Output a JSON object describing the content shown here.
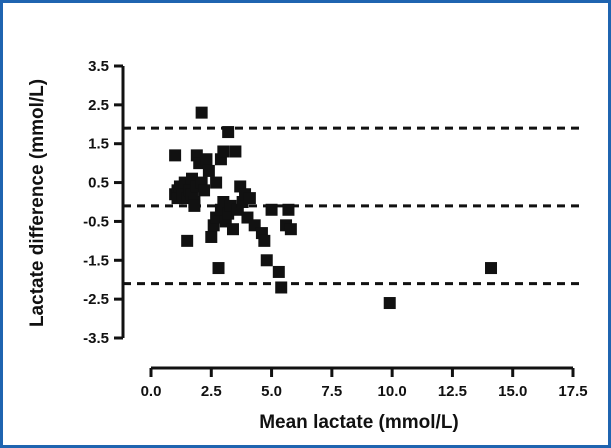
{
  "frame_color": "#1f64b0",
  "chart_data": {
    "type": "scatter",
    "xlabel": "Mean lactate (mmol/L)",
    "ylabel": "Lactate difference (mmol/L)",
    "xlim": [
      0,
      17.5
    ],
    "ylim": [
      -3.5,
      3.5
    ],
    "x_ticks": [
      "0.0",
      "2.5",
      "5.0",
      "7.5",
      "10.0",
      "12.5",
      "15.0",
      "17.5"
    ],
    "y_ticks": [
      "3.5",
      "2.5",
      "1.5",
      "0.5",
      "-0.5",
      "-1.5",
      "-2.5",
      "-3.5"
    ],
    "grid": false,
    "marker": "square",
    "marker_color": "#111111",
    "reference_lines": [
      {
        "y": 1.9,
        "style": "dashed"
      },
      {
        "y": -0.1,
        "style": "dashed"
      },
      {
        "y": -2.1,
        "style": "dashed"
      }
    ],
    "points": [
      [
        1.0,
        1.2
      ],
      [
        1.0,
        0.2
      ],
      [
        1.1,
        0.3
      ],
      [
        1.1,
        0.1
      ],
      [
        1.2,
        0.4
      ],
      [
        1.3,
        0.2
      ],
      [
        1.4,
        0.5
      ],
      [
        1.5,
        0.1
      ],
      [
        1.5,
        -1.0
      ],
      [
        1.6,
        0.3
      ],
      [
        1.7,
        0.6
      ],
      [
        1.7,
        0.2
      ],
      [
        1.8,
        0.0
      ],
      [
        1.8,
        -0.1
      ],
      [
        1.9,
        1.2
      ],
      [
        1.9,
        0.4
      ],
      [
        2.0,
        1.0
      ],
      [
        2.1,
        2.3
      ],
      [
        2.1,
        0.5
      ],
      [
        2.2,
        0.3
      ],
      [
        2.3,
        1.1
      ],
      [
        2.4,
        0.8
      ],
      [
        2.5,
        -0.9
      ],
      [
        2.6,
        -0.6
      ],
      [
        2.7,
        0.5
      ],
      [
        2.7,
        -0.4
      ],
      [
        2.8,
        -1.7
      ],
      [
        2.9,
        1.1
      ],
      [
        2.9,
        -0.2
      ],
      [
        3.0,
        1.3
      ],
      [
        3.0,
        0.0
      ],
      [
        3.1,
        -0.5
      ],
      [
        3.2,
        1.8
      ],
      [
        3.2,
        -0.3
      ],
      [
        3.3,
        -0.1
      ],
      [
        3.4,
        -0.7
      ],
      [
        3.5,
        1.3
      ],
      [
        3.6,
        -0.2
      ],
      [
        3.7,
        0.4
      ],
      [
        3.8,
        0.0
      ],
      [
        3.9,
        0.2
      ],
      [
        4.0,
        -0.4
      ],
      [
        4.1,
        0.1
      ],
      [
        4.3,
        -0.6
      ],
      [
        4.6,
        -0.8
      ],
      [
        4.7,
        -1.0
      ],
      [
        4.8,
        -1.5
      ],
      [
        5.0,
        -0.2
      ],
      [
        5.3,
        -1.8
      ],
      [
        5.4,
        -2.2
      ],
      [
        5.6,
        -0.6
      ],
      [
        5.7,
        -0.2
      ],
      [
        5.8,
        -0.7
      ],
      [
        9.9,
        -2.6
      ],
      [
        14.1,
        -1.7
      ]
    ]
  }
}
